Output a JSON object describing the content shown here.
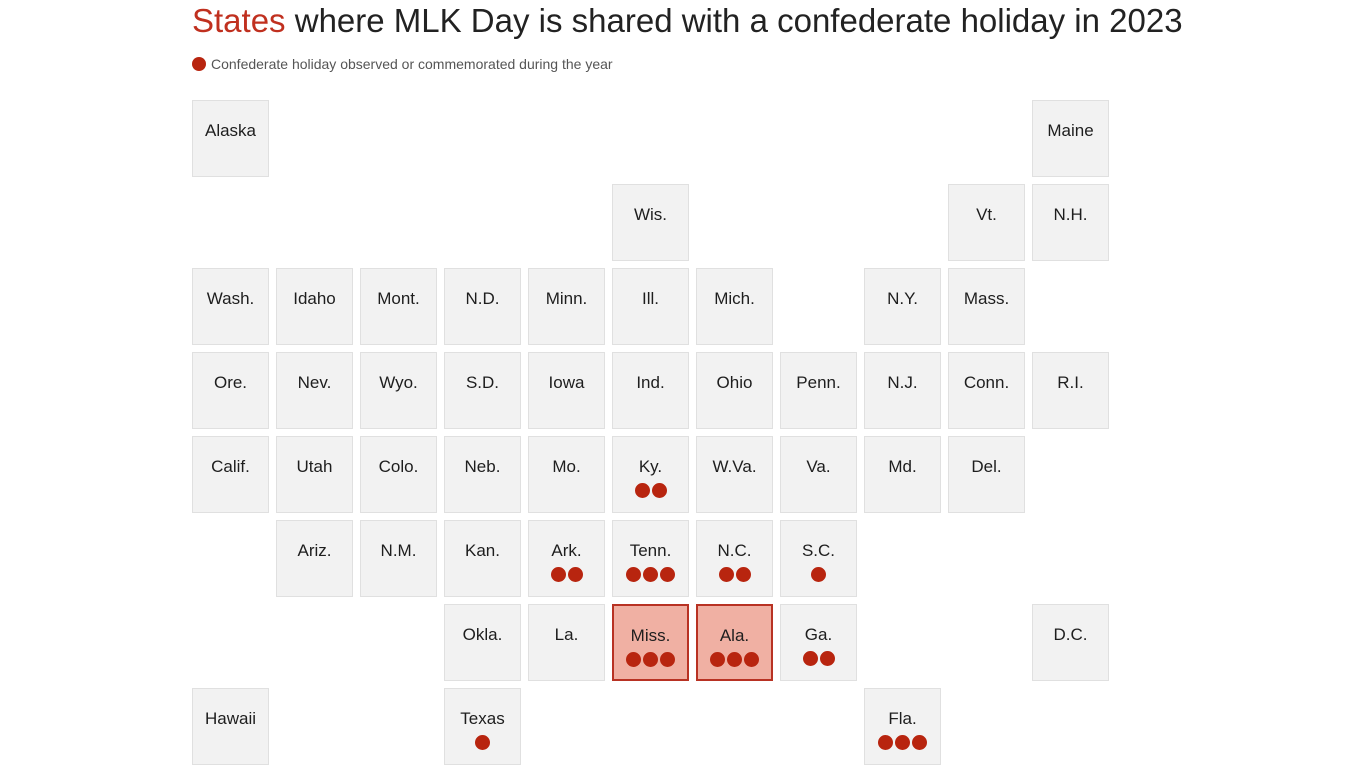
{
  "title": {
    "accent": "States",
    "rest": " where MLK Day is shared with a confederate holiday in 2023"
  },
  "legend": {
    "label": "Confederate holiday observed or commemorated during the year"
  },
  "colors": {
    "accent": "#c0301f",
    "dot": "#b8250f",
    "tile": "#f2f2f2",
    "highlight": "#f0b0a3",
    "highlight_border": "#b83223"
  },
  "chart_data": {
    "type": "table",
    "layout": "state tile grid map",
    "value_meaning": "count of confederate holidays observed or commemorated during the year",
    "states": [
      {
        "name": "Alaska",
        "row": 0,
        "col": 0,
        "holidays": 0
      },
      {
        "name": "Maine",
        "row": 0,
        "col": 10,
        "holidays": 0
      },
      {
        "name": "Wis.",
        "row": 1,
        "col": 5,
        "holidays": 0
      },
      {
        "name": "Vt.",
        "row": 1,
        "col": 9,
        "holidays": 0
      },
      {
        "name": "N.H.",
        "row": 1,
        "col": 10,
        "holidays": 0
      },
      {
        "name": "Wash.",
        "row": 2,
        "col": 0,
        "holidays": 0
      },
      {
        "name": "Idaho",
        "row": 2,
        "col": 1,
        "holidays": 0
      },
      {
        "name": "Mont.",
        "row": 2,
        "col": 2,
        "holidays": 0
      },
      {
        "name": "N.D.",
        "row": 2,
        "col": 3,
        "holidays": 0
      },
      {
        "name": "Minn.",
        "row": 2,
        "col": 4,
        "holidays": 0
      },
      {
        "name": "Ill.",
        "row": 2,
        "col": 5,
        "holidays": 0
      },
      {
        "name": "Mich.",
        "row": 2,
        "col": 6,
        "holidays": 0
      },
      {
        "name": "N.Y.",
        "row": 2,
        "col": 8,
        "holidays": 0
      },
      {
        "name": "Mass.",
        "row": 2,
        "col": 9,
        "holidays": 0
      },
      {
        "name": "Ore.",
        "row": 3,
        "col": 0,
        "holidays": 0
      },
      {
        "name": "Nev.",
        "row": 3,
        "col": 1,
        "holidays": 0
      },
      {
        "name": "Wyo.",
        "row": 3,
        "col": 2,
        "holidays": 0
      },
      {
        "name": "S.D.",
        "row": 3,
        "col": 3,
        "holidays": 0
      },
      {
        "name": "Iowa",
        "row": 3,
        "col": 4,
        "holidays": 0
      },
      {
        "name": "Ind.",
        "row": 3,
        "col": 5,
        "holidays": 0
      },
      {
        "name": "Ohio",
        "row": 3,
        "col": 6,
        "holidays": 0
      },
      {
        "name": "Penn.",
        "row": 3,
        "col": 7,
        "holidays": 0
      },
      {
        "name": "N.J.",
        "row": 3,
        "col": 8,
        "holidays": 0
      },
      {
        "name": "Conn.",
        "row": 3,
        "col": 9,
        "holidays": 0
      },
      {
        "name": "R.I.",
        "row": 3,
        "col": 10,
        "holidays": 0
      },
      {
        "name": "Calif.",
        "row": 4,
        "col": 0,
        "holidays": 0
      },
      {
        "name": "Utah",
        "row": 4,
        "col": 1,
        "holidays": 0
      },
      {
        "name": "Colo.",
        "row": 4,
        "col": 2,
        "holidays": 0
      },
      {
        "name": "Neb.",
        "row": 4,
        "col": 3,
        "holidays": 0
      },
      {
        "name": "Mo.",
        "row": 4,
        "col": 4,
        "holidays": 0
      },
      {
        "name": "Ky.",
        "row": 4,
        "col": 5,
        "holidays": 2
      },
      {
        "name": "W.Va.",
        "row": 4,
        "col": 6,
        "holidays": 0
      },
      {
        "name": "Va.",
        "row": 4,
        "col": 7,
        "holidays": 0
      },
      {
        "name": "Md.",
        "row": 4,
        "col": 8,
        "holidays": 0
      },
      {
        "name": "Del.",
        "row": 4,
        "col": 9,
        "holidays": 0
      },
      {
        "name": "Ariz.",
        "row": 5,
        "col": 1,
        "holidays": 0
      },
      {
        "name": "N.M.",
        "row": 5,
        "col": 2,
        "holidays": 0
      },
      {
        "name": "Kan.",
        "row": 5,
        "col": 3,
        "holidays": 0
      },
      {
        "name": "Ark.",
        "row": 5,
        "col": 4,
        "holidays": 2
      },
      {
        "name": "Tenn.",
        "row": 5,
        "col": 5,
        "holidays": 3
      },
      {
        "name": "N.C.",
        "row": 5,
        "col": 6,
        "holidays": 2
      },
      {
        "name": "S.C.",
        "row": 5,
        "col": 7,
        "holidays": 1
      },
      {
        "name": "Okla.",
        "row": 6,
        "col": 3,
        "holidays": 0
      },
      {
        "name": "La.",
        "row": 6,
        "col": 4,
        "holidays": 0
      },
      {
        "name": "Miss.",
        "row": 6,
        "col": 5,
        "holidays": 3,
        "highlight": true
      },
      {
        "name": "Ala.",
        "row": 6,
        "col": 6,
        "holidays": 3,
        "highlight": true
      },
      {
        "name": "Ga.",
        "row": 6,
        "col": 7,
        "holidays": 2
      },
      {
        "name": "D.C.",
        "row": 6,
        "col": 10,
        "holidays": 0
      },
      {
        "name": "Hawaii",
        "row": 7,
        "col": 0,
        "holidays": 0
      },
      {
        "name": "Texas",
        "row": 7,
        "col": 3,
        "holidays": 1
      },
      {
        "name": "Fla.",
        "row": 7,
        "col": 8,
        "holidays": 3
      }
    ]
  }
}
